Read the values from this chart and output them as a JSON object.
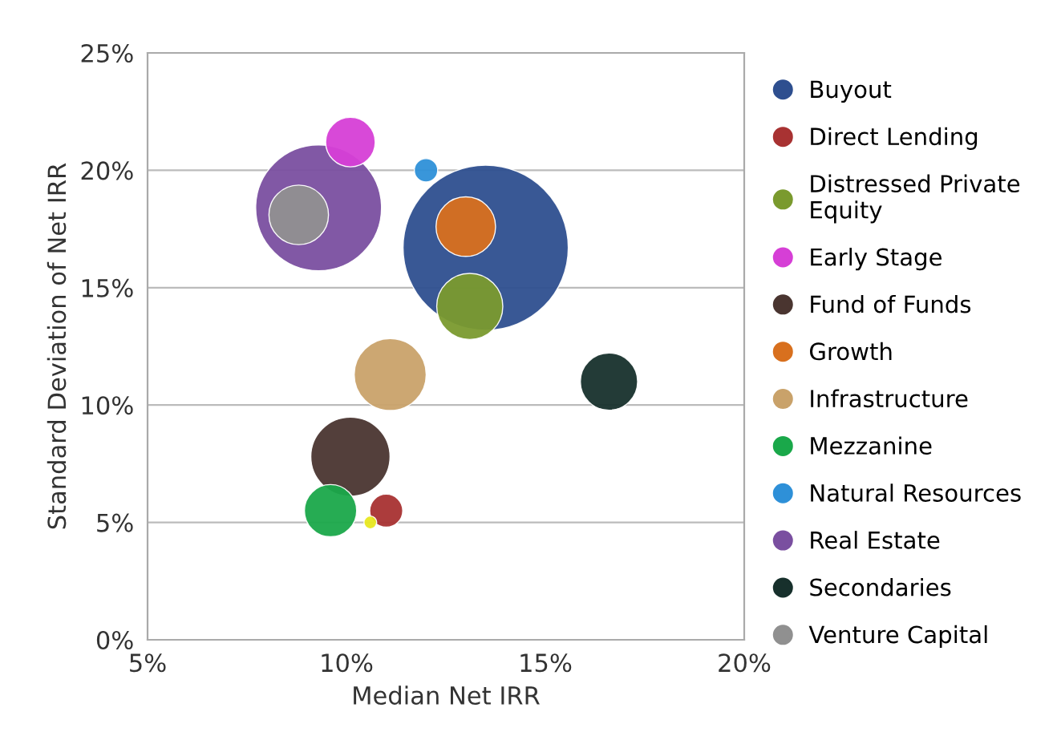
{
  "chart_data": {
    "type": "bubble",
    "xlabel": "Median Net IRR",
    "ylabel": "Standard Deviation of Net IRR",
    "xlim": [
      5,
      20
    ],
    "ylim": [
      0,
      25
    ],
    "xticks": [
      {
        "value": 5,
        "label": "5%"
      },
      {
        "value": 10,
        "label": "10%"
      },
      {
        "value": 15,
        "label": "15%"
      },
      {
        "value": 20,
        "label": "20%"
      }
    ],
    "yticks": [
      {
        "value": 0,
        "label": "0%"
      },
      {
        "value": 5,
        "label": "5%"
      },
      {
        "value": 10,
        "label": "10%"
      },
      {
        "value": 15,
        "label": "15%"
      },
      {
        "value": 20,
        "label": "20%"
      },
      {
        "value": 25,
        "label": "25%"
      }
    ],
    "grid": "y",
    "legend": "right",
    "marker": "circle",
    "series": [
      {
        "name": "Buyout",
        "color": "#2e4f8f",
        "x": [
          13.5
        ],
        "values": [
          16.7
        ],
        "sizes": [
          1
        ]
      },
      {
        "name": "Direct Lending",
        "color": "#a83232",
        "x": [
          11.0
        ],
        "values": [
          5.5
        ],
        "sizes": [
          0.04
        ]
      },
      {
        "name": "Distressed Private Equity",
        "color": "#7a9a2e",
        "x": [
          13.1
        ],
        "values": [
          14.2
        ],
        "sizes": [
          0.16
        ]
      },
      {
        "name": "Early Stage",
        "color": "#d63fd6",
        "x": [
          10.1
        ],
        "values": [
          21.2
        ],
        "sizes": [
          0.09
        ]
      },
      {
        "name": "Fund of Funds",
        "color": "#4a3530",
        "x": [
          10.1
        ],
        "values": [
          7.8
        ],
        "sizes": [
          0.23
        ]
      },
      {
        "name": "Growth",
        "color": "#d8701e",
        "x": [
          13.0
        ],
        "values": [
          17.6
        ],
        "sizes": [
          0.13
        ]
      },
      {
        "name": "Infrastructure",
        "color": "#c9a26a",
        "x": [
          11.1
        ],
        "values": [
          11.3
        ],
        "sizes": [
          0.19
        ]
      },
      {
        "name": "Mezzanine",
        "color": "#1aa84a",
        "x": [
          9.6
        ],
        "values": [
          5.5
        ],
        "sizes": [
          0.1
        ]
      },
      {
        "name": "Natural Resources",
        "color": "#2e90d8",
        "x": [
          12.0
        ],
        "values": [
          20.0
        ],
        "sizes": [
          0.02
        ]
      },
      {
        "name": "Real Estate",
        "color": "#7a4fa0",
        "x": [
          9.3
        ],
        "values": [
          18.4
        ],
        "sizes": [
          0.58
        ]
      },
      {
        "name": "Secondaries",
        "color": "#17302c",
        "x": [
          16.6
        ],
        "values": [
          11.0
        ],
        "sizes": [
          0.12
        ]
      },
      {
        "name": "Venture Capital",
        "color": "#909090",
        "x": [
          8.8
        ],
        "values": [
          18.1
        ],
        "sizes": [
          0.13
        ]
      },
      {
        "color": "#e8e820",
        "x": [
          10.6
        ],
        "values": [
          5.0
        ],
        "sizes": [
          0.006
        ]
      }
    ]
  }
}
